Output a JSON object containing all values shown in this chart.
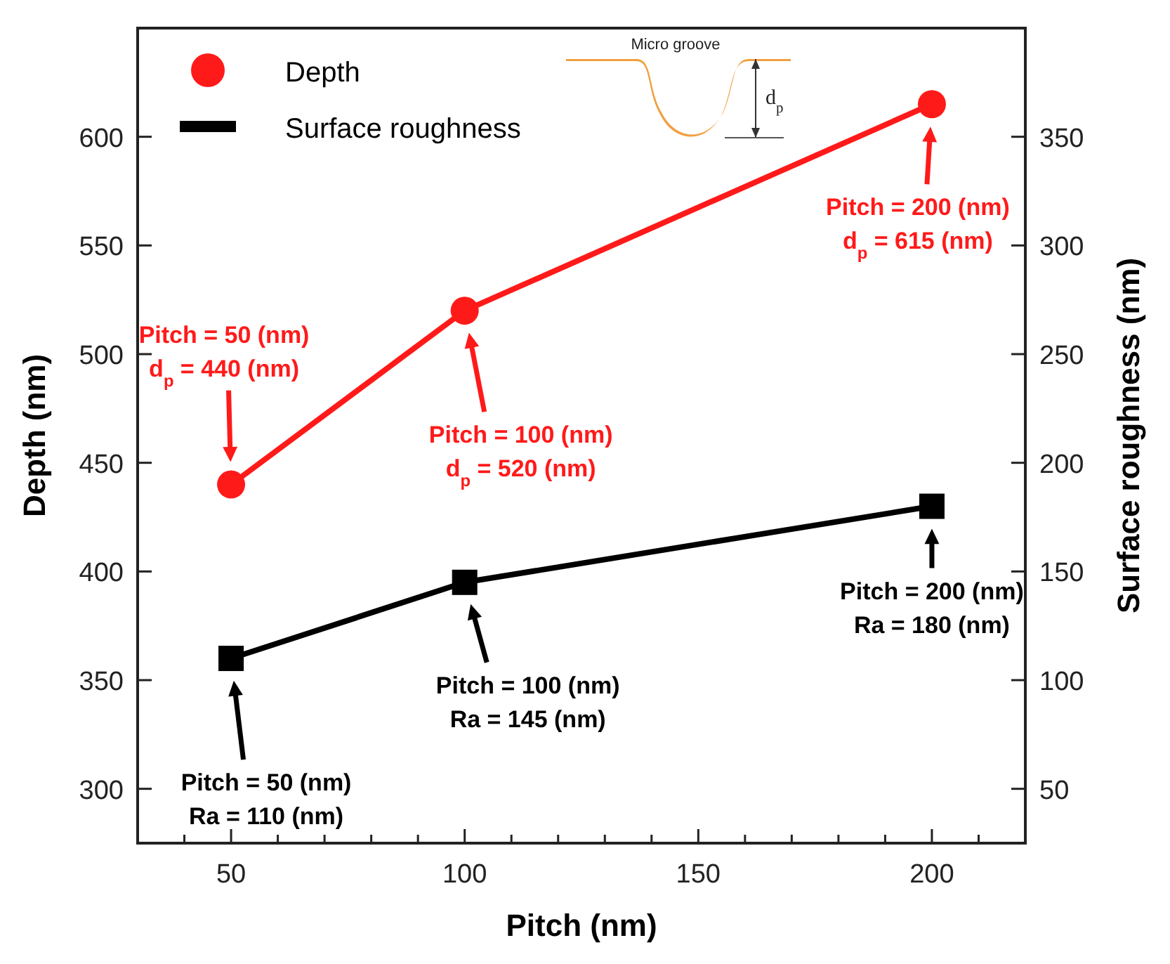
{
  "chart_data": {
    "type": "line",
    "xlabel": "Pitch (nm)",
    "ylabel": "Depth (nm)",
    "y2label": "Surface roughness (nm)",
    "x": [
      50,
      100,
      200
    ],
    "xlim": [
      30,
      220
    ],
    "xticks": [
      {
        "value": 40,
        "label": null
      },
      50,
      {
        "value": 60,
        "label": null
      },
      {
        "value": 70,
        "label": null
      },
      {
        "value": 80,
        "label": null
      },
      {
        "value": 90,
        "label": null
      },
      100,
      {
        "value": 110,
        "label": null
      },
      {
        "value": 120,
        "label": null
      },
      {
        "value": 130,
        "label": null
      },
      {
        "value": 140,
        "label": null
      },
      150,
      {
        "value": 160,
        "label": null
      },
      {
        "value": 170,
        "label": null
      },
      {
        "value": 180,
        "label": null
      },
      {
        "value": 190,
        "label": null
      },
      200,
      {
        "value": 210,
        "label": null
      }
    ],
    "ylim": [
      275,
      650
    ],
    "yticks": [
      300,
      350,
      400,
      450,
      500,
      550,
      600
    ],
    "y2lim": [
      25,
      400
    ],
    "y2ticks": [
      50,
      100,
      150,
      200,
      250,
      300,
      350
    ],
    "legend": "top left",
    "grid": false,
    "series": [
      {
        "name": "Depth",
        "color": "#ff1a1a",
        "values": [
          440,
          520,
          615
        ],
        "marker": "circle"
      },
      {
        "name": "Surface roughness",
        "color": "#000000",
        "values": [
          110,
          145,
          180
        ],
        "marker": "square",
        "axis": "y2"
      }
    ],
    "annotations": [
      "Pitch = 50 (nm)\nd$_{p}$ = 440 (nm)",
      "Pitch = 100 (nm)\nd$_{p}$ = 520 (nm)",
      "Pitch = 200 (nm)\nd$_{p}$ = 615 (nm)",
      "Pitch = 50 (nm)\nRa = 110 (nm)",
      "Pitch = 100 (nm)\nRa = 145 (nm)",
      "Pitch = 200 (nm)\nRa = 180 (nm)",
      "Micro groove",
      "d$_{p}$"
    ]
  }
}
